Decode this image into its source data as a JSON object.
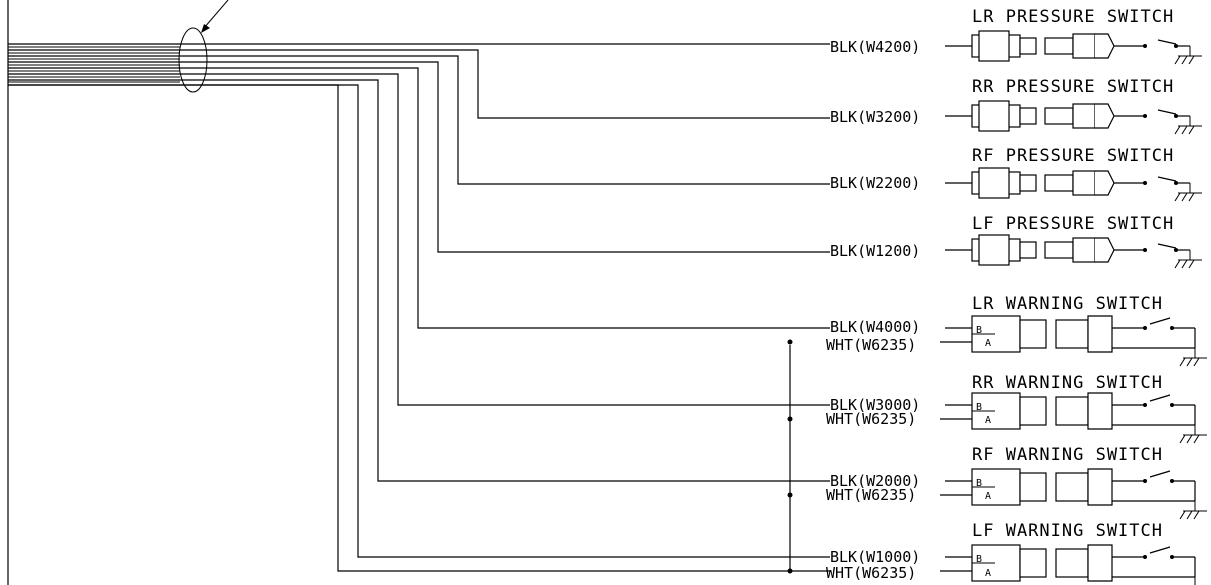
{
  "pressure_switches": [
    {
      "title": "LR PRESSURE SWITCH",
      "wire": "BLK(W4200)"
    },
    {
      "title": "RR PRESSURE SWITCH",
      "wire": "BLK(W3200)"
    },
    {
      "title": "RF PRESSURE SWITCH",
      "wire": "BLK(W2200)"
    },
    {
      "title": "LF PRESSURE SWITCH",
      "wire": "BLK(W1200)"
    }
  ],
  "warning_switches": [
    {
      "title": "LR WARNING SWITCH",
      "blk": "BLK(W4000)",
      "wht": "WHT(W6235)"
    },
    {
      "title": "RR WARNING SWITCH",
      "blk": "BLK(W3000)",
      "wht": "WHT(W6235)"
    },
    {
      "title": "RF WARNING SWITCH",
      "blk": "BLK(W2000)",
      "wht": "WHT(W6235)"
    },
    {
      "title": "LF WARNING SWITCH",
      "blk": "BLK(W1000)",
      "wht": "WHT(W6235)"
    }
  ],
  "pin_labels": {
    "b": "B",
    "a": "A"
  }
}
